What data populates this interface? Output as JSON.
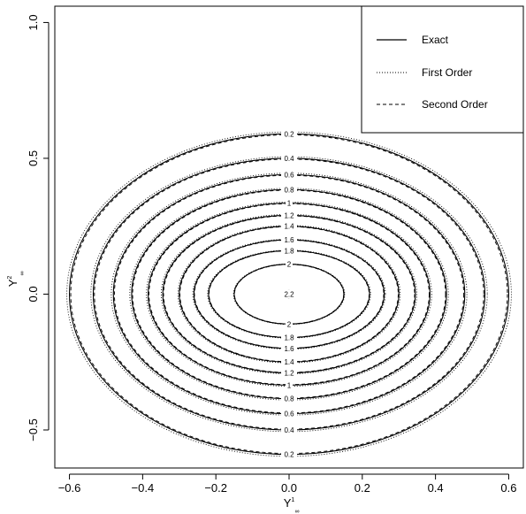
{
  "chart_data": {
    "type": "contour",
    "title": "",
    "xlabel": {
      "main": "Y",
      "sup": "1",
      "sub": "∞"
    },
    "ylabel": {
      "main": "Y",
      "sup": "2",
      "sub": "∞"
    },
    "xlim": [
      -0.64,
      0.64
    ],
    "ylim": [
      -0.64,
      1.06
    ],
    "x_ticks": [
      -0.6,
      -0.4,
      -0.2,
      0.0,
      0.2,
      0.4,
      0.6
    ],
    "x_tick_labels": [
      "−0.6",
      "−0.4",
      "−0.2",
      "0.0",
      "0.2",
      "0.4",
      "0.6"
    ],
    "y_ticks": [
      -0.5,
      0.0,
      0.5,
      1.0
    ],
    "y_tick_labels": [
      "−0.5",
      "0.0",
      "0.5",
      "1.0"
    ],
    "grid": false,
    "legend_position": "top-right",
    "series": [
      {
        "name": "Exact",
        "style": "solid"
      },
      {
        "name": "First Order",
        "style": "dotted"
      },
      {
        "name": "Second Order",
        "style": "dashed"
      }
    ],
    "levels": [
      {
        "label": "0.2",
        "rx": 0.6,
        "ry": 0.59
      },
      {
        "label": "0.4",
        "rx": 0.535,
        "ry": 0.5
      },
      {
        "label": "0.6",
        "rx": 0.48,
        "ry": 0.44
      },
      {
        "label": "0.8",
        "rx": 0.43,
        "ry": 0.385
      },
      {
        "label": "1",
        "rx": 0.385,
        "ry": 0.335
      },
      {
        "label": "1.2",
        "rx": 0.345,
        "ry": 0.29
      },
      {
        "label": "1.4",
        "rx": 0.3,
        "ry": 0.25
      },
      {
        "label": "1.6",
        "rx": 0.26,
        "ry": 0.2
      },
      {
        "label": "1.8",
        "rx": 0.22,
        "ry": 0.16
      },
      {
        "label": "2",
        "rx": 0.15,
        "ry": 0.11
      },
      {
        "label": "2.2",
        "rx": 0.015,
        "ry": 0.015
      }
    ]
  }
}
